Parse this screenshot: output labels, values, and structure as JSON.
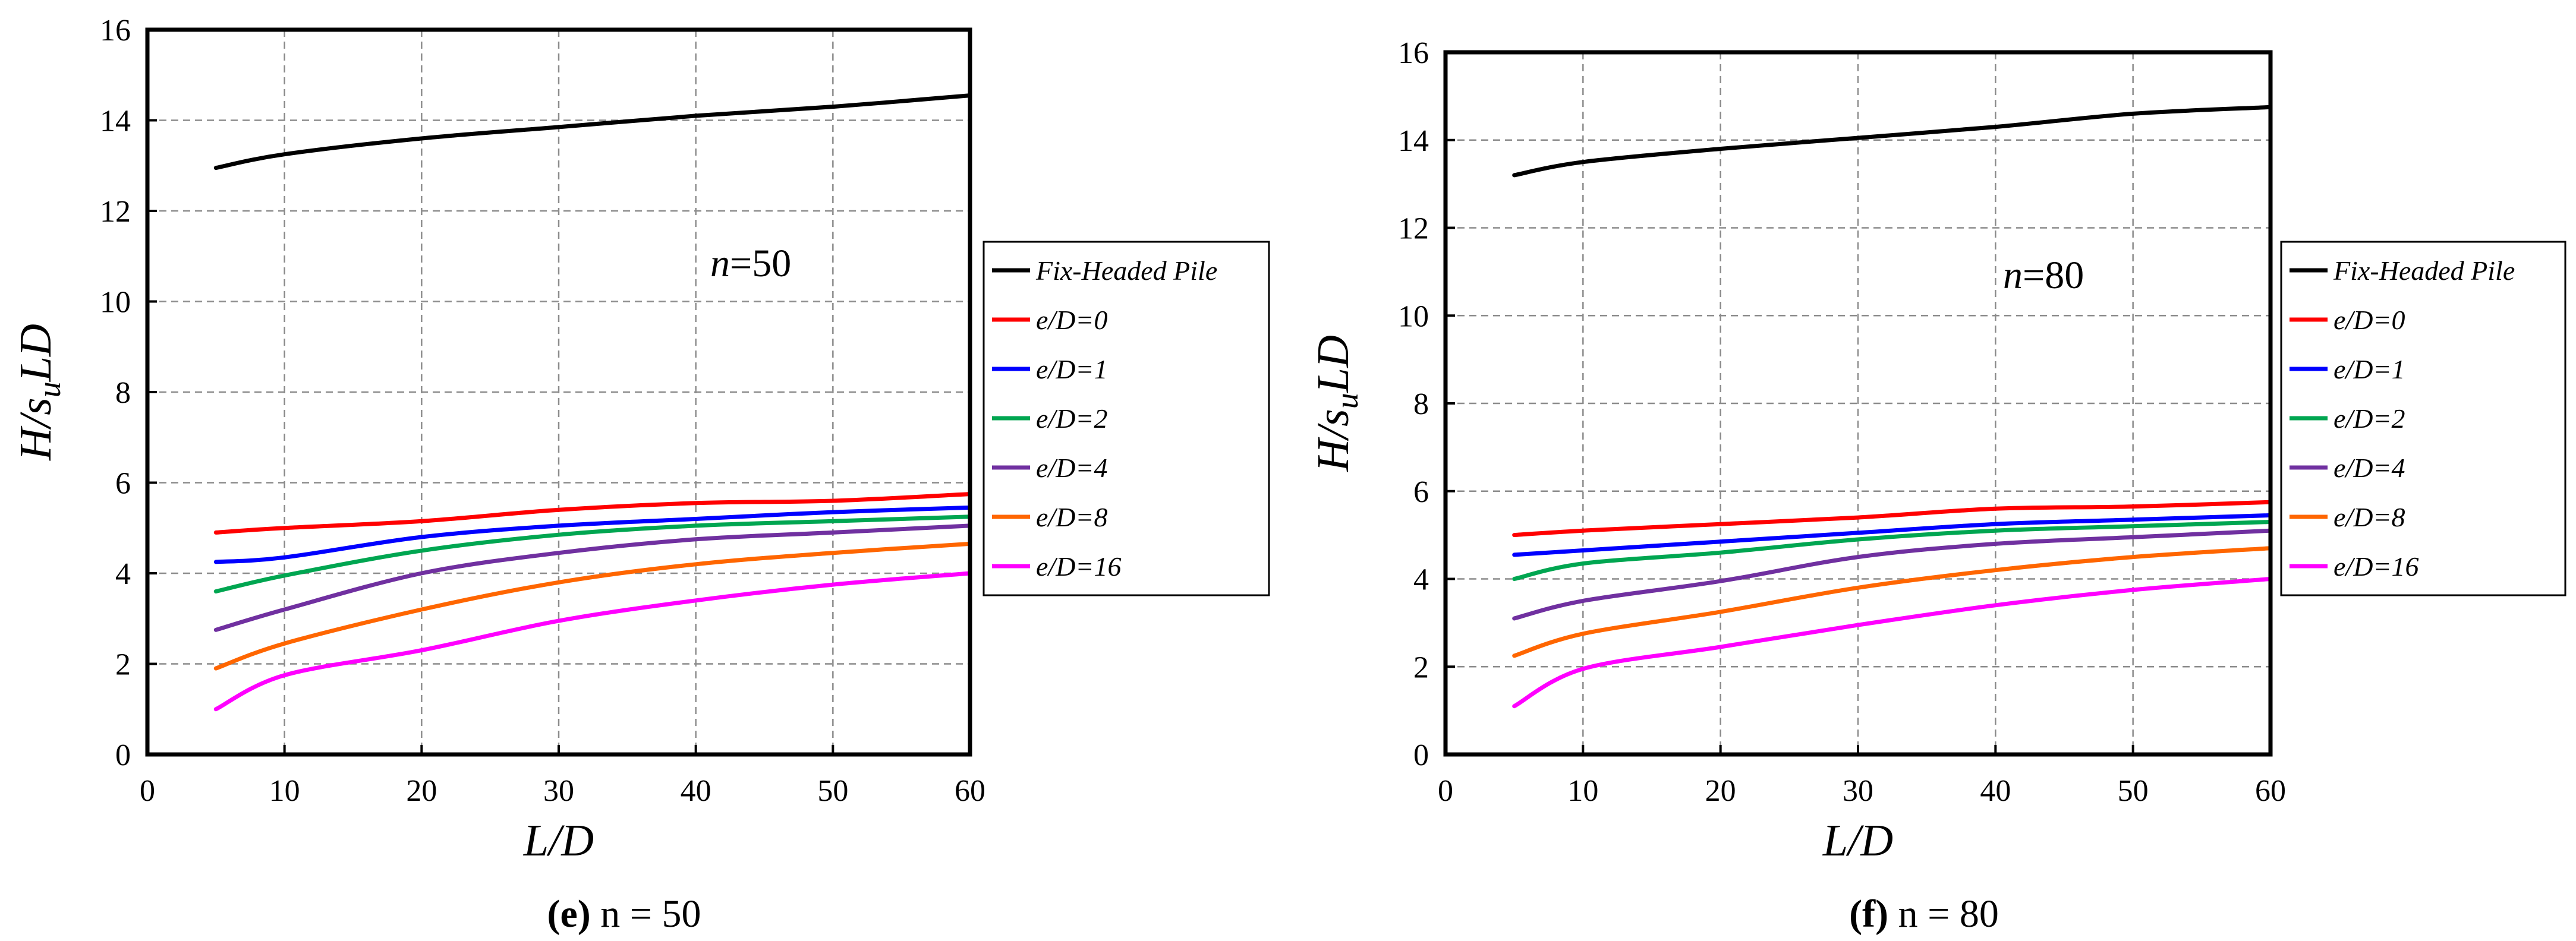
{
  "figure": {
    "panels": [
      {
        "caption_letter": "(e)",
        "caption_rest": " n = 50",
        "annotation_var": "n",
        "annotation_rest": "=50",
        "xlabel": "L/D",
        "ylabel_main": "H/s",
        "ylabel_sub": "u",
        "ylabel_tail": "LD"
      },
      {
        "caption_letter": "(f)",
        "caption_rest": " n = 80",
        "annotation_var": "n",
        "annotation_rest": "=80",
        "xlabel": "L/D",
        "ylabel_main": "H/s",
        "ylabel_sub": "u",
        "ylabel_tail": "LD"
      }
    ]
  },
  "chart_data": [
    {
      "type": "line",
      "xlim": [
        0,
        60
      ],
      "ylim": [
        0,
        16
      ],
      "xticks": [
        0,
        10,
        20,
        30,
        40,
        50,
        60
      ],
      "yticks": [
        0,
        2,
        4,
        6,
        8,
        10,
        12,
        14,
        16
      ],
      "grid": true,
      "legend_position": "right",
      "x": [
        5,
        10,
        20,
        30,
        40,
        50,
        60
      ],
      "series": [
        {
          "name": "Fix-Headed Pile",
          "color": "#000000",
          "values": [
            12.95,
            13.25,
            13.6,
            13.85,
            14.1,
            14.3,
            14.55
          ]
        },
        {
          "name": "e/D=0",
          "color": "#ff0000",
          "values": [
            4.9,
            5.0,
            5.15,
            5.4,
            5.55,
            5.6,
            5.75
          ]
        },
        {
          "name": "e/D=1",
          "color": "#0000ff",
          "values": [
            4.25,
            4.35,
            4.8,
            5.05,
            5.2,
            5.35,
            5.45
          ]
        },
        {
          "name": "e/D=2",
          "color": "#00a651",
          "values": [
            3.6,
            3.95,
            4.5,
            4.85,
            5.05,
            5.15,
            5.25
          ]
        },
        {
          "name": "e/D=4",
          "color": "#7030a0",
          "values": [
            2.75,
            3.2,
            4.0,
            4.45,
            4.75,
            4.9,
            5.05
          ]
        },
        {
          "name": "e/D=8",
          "color": "#ff6600",
          "values": [
            1.9,
            2.45,
            3.2,
            3.8,
            4.2,
            4.45,
            4.65
          ]
        },
        {
          "name": "e/D=16",
          "color": "#ff00ff",
          "values": [
            1.0,
            1.75,
            2.3,
            2.95,
            3.4,
            3.75,
            4.0
          ]
        }
      ]
    },
    {
      "type": "line",
      "xlim": [
        0,
        60
      ],
      "ylim": [
        0,
        16
      ],
      "xticks": [
        0,
        10,
        20,
        30,
        40,
        50,
        60
      ],
      "yticks": [
        0,
        2,
        4,
        6,
        8,
        10,
        12,
        14,
        16
      ],
      "grid": true,
      "legend_position": "right",
      "x": [
        5,
        10,
        20,
        30,
        40,
        50,
        60
      ],
      "series": [
        {
          "name": "Fix-Headed Pile",
          "color": "#000000",
          "values": [
            13.2,
            13.5,
            13.8,
            14.05,
            14.3,
            14.6,
            14.75
          ]
        },
        {
          "name": "e/D=0",
          "color": "#ff0000",
          "values": [
            5.0,
            5.1,
            5.25,
            5.4,
            5.6,
            5.65,
            5.75
          ]
        },
        {
          "name": "e/D=1",
          "color": "#0000ff",
          "values": [
            4.55,
            4.65,
            4.85,
            5.05,
            5.25,
            5.35,
            5.45
          ]
        },
        {
          "name": "e/D=2",
          "color": "#00a651",
          "values": [
            4.0,
            4.35,
            4.6,
            4.9,
            5.1,
            5.2,
            5.3
          ]
        },
        {
          "name": "e/D=4",
          "color": "#7030a0",
          "values": [
            3.1,
            3.5,
            3.95,
            4.5,
            4.8,
            4.95,
            5.1
          ]
        },
        {
          "name": "e/D=8",
          "color": "#ff6600",
          "values": [
            2.25,
            2.75,
            3.25,
            3.8,
            4.2,
            4.5,
            4.7
          ]
        },
        {
          "name": "e/D=16",
          "color": "#ff00ff",
          "values": [
            1.1,
            1.95,
            2.45,
            2.95,
            3.4,
            3.75,
            4.0
          ]
        }
      ]
    }
  ]
}
